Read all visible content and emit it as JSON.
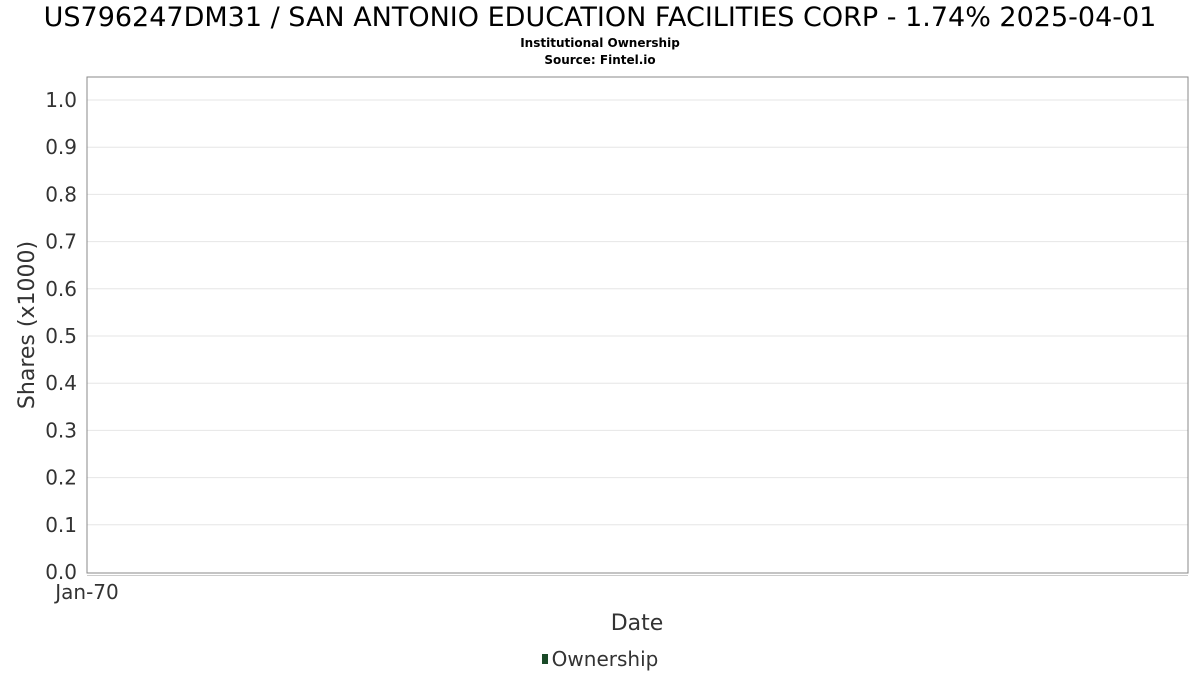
{
  "chart_data": {
    "type": "area",
    "title": "US796247DM31 / SAN ANTONIO EDUCATION FACILITIES CORP - 1.74% 2025-04-01",
    "subtitle": "Institutional Ownership",
    "source": "Source: Fintel.io",
    "xlabel": "Date",
    "ylabel": "Shares (x1000)",
    "x_ticks": [
      "Jan-70"
    ],
    "y_ticks": [
      "0.0",
      "0.1",
      "0.2",
      "0.3",
      "0.4",
      "0.5",
      "0.6",
      "0.7",
      "0.8",
      "0.9",
      "1.0"
    ],
    "ylim": [
      0,
      1.05
    ],
    "grid": true,
    "legend_position": "bottom",
    "series": [
      {
        "name": "Ownership",
        "color": "#1a4a28",
        "x": [],
        "values": []
      }
    ]
  }
}
